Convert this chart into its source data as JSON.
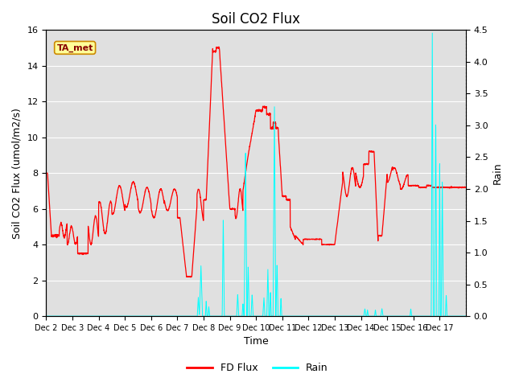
{
  "title": "Soil CO2 Flux",
  "ylabel_left": "Soil CO2 Flux (umol/m2/s)",
  "ylabel_right": "Rain",
  "xlabel": "Time",
  "xlim_days": [
    1,
    17
  ],
  "ylim_left": [
    0,
    16
  ],
  "ylim_right": [
    0,
    4.5
  ],
  "yticks_left": [
    0,
    2,
    4,
    6,
    8,
    10,
    12,
    14,
    16
  ],
  "yticks_right": [
    0.0,
    0.5,
    1.0,
    1.5,
    2.0,
    2.5,
    3.0,
    3.5,
    4.0,
    4.5
  ],
  "xtick_labels": [
    "Dec 2",
    "Dec 3",
    "Dec 4",
    "Dec 5",
    "Dec 6",
    "Dec 7",
    "Dec 8",
    "Dec 9",
    "Dec 10",
    "Dec 11",
    "Dec 12",
    "Dec 13",
    "Dec 14",
    "Dec 15",
    "Dec 16",
    "Dec 17"
  ],
  "flux_color": "#FF0000",
  "rain_color": "#00FFFF",
  "bg_color": "#E0E0E0",
  "legend_flux": "FD Flux",
  "legend_rain": "Rain",
  "annotation_box": "TA_met",
  "annotation_box_bg": "#FFFF99",
  "annotation_box_border": "#CC8800",
  "fig_width": 6.4,
  "fig_height": 4.8,
  "fig_dpi": 100
}
